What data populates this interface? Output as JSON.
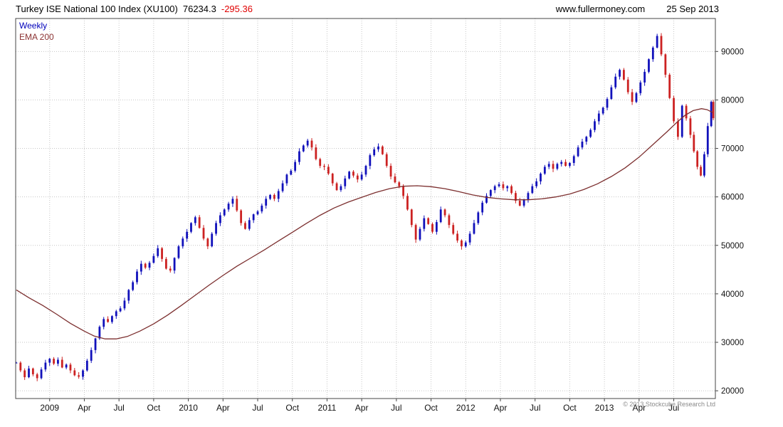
{
  "header": {
    "title": "Turkey ISE National 100 Index (XU100)",
    "last_price": "76234.3",
    "change": "-295.36",
    "site": "www.fullermoney.com",
    "date": "25 Sep 2013"
  },
  "legend": {
    "series": "Weekly",
    "ema": "EMA 200"
  },
  "footer": {
    "copyright": "© 2013 Stockcube Research Ltd"
  },
  "colors": {
    "up": "#1111bb",
    "down": "#cc2222",
    "ema": "#7c2f2f",
    "grid": "#c6c6c6",
    "border": "#444444",
    "axis_text": "#111111",
    "change_text": "#e00000",
    "legend_weekly": "#0000bb",
    "legend_ema": "#8b3232"
  },
  "chart_data": {
    "type": "candlestick",
    "title": "Turkey ISE National 100 Index (XU100)",
    "timeframe": "Weekly",
    "overlay": "EMA 200",
    "last_price": 76234.3,
    "change": -295.36,
    "x_domain": [
      2008.755,
      2013.8
    ],
    "y_domain": [
      18400,
      96800
    ],
    "y_ticks": [
      20000,
      30000,
      40000,
      50000,
      60000,
      70000,
      80000,
      90000
    ],
    "x_ticks": [
      {
        "t": 2009.0,
        "label": "2009"
      },
      {
        "t": 2009.25,
        "label": "Apr"
      },
      {
        "t": 2009.5,
        "label": "Jul"
      },
      {
        "t": 2009.75,
        "label": "Oct"
      },
      {
        "t": 2010.0,
        "label": "2010"
      },
      {
        "t": 2010.25,
        "label": "Apr"
      },
      {
        "t": 2010.5,
        "label": "Jul"
      },
      {
        "t": 2010.75,
        "label": "Oct"
      },
      {
        "t": 2011.0,
        "label": "2011"
      },
      {
        "t": 2011.25,
        "label": "Apr"
      },
      {
        "t": 2011.5,
        "label": "Jul"
      },
      {
        "t": 2011.75,
        "label": "Oct"
      },
      {
        "t": 2012.0,
        "label": "2012"
      },
      {
        "t": 2012.25,
        "label": "Apr"
      },
      {
        "t": 2012.5,
        "label": "Jul"
      },
      {
        "t": 2012.75,
        "label": "Oct"
      },
      {
        "t": 2013.0,
        "label": "2013"
      },
      {
        "t": 2013.25,
        "label": "Apr"
      },
      {
        "t": 2013.5,
        "label": "Jul"
      }
    ],
    "series": {
      "weekly_close": [
        [
          2008.76,
          25800
        ],
        [
          2008.79,
          24200
        ],
        [
          2008.82,
          22800
        ],
        [
          2008.85,
          24600
        ],
        [
          2008.88,
          23400
        ],
        [
          2008.91,
          22600
        ],
        [
          2008.94,
          24400
        ],
        [
          2008.97,
          25800
        ],
        [
          2009.0,
          26600
        ],
        [
          2009.03,
          25600
        ],
        [
          2009.06,
          26400
        ],
        [
          2009.09,
          24800
        ],
        [
          2009.12,
          25400
        ],
        [
          2009.15,
          24200
        ],
        [
          2009.18,
          23200
        ],
        [
          2009.21,
          22900
        ],
        [
          2009.24,
          24200
        ],
        [
          2009.27,
          26200
        ],
        [
          2009.3,
          28400
        ],
        [
          2009.33,
          30800
        ],
        [
          2009.36,
          33200
        ],
        [
          2009.39,
          34800
        ],
        [
          2009.42,
          34200
        ],
        [
          2009.45,
          35400
        ],
        [
          2009.48,
          36400
        ],
        [
          2009.51,
          37000
        ],
        [
          2009.54,
          38600
        ],
        [
          2009.57,
          40800
        ],
        [
          2009.6,
          42400
        ],
        [
          2009.63,
          44600
        ],
        [
          2009.66,
          46200
        ],
        [
          2009.69,
          45400
        ],
        [
          2009.72,
          46400
        ],
        [
          2009.75,
          47800
        ],
        [
          2009.78,
          49400
        ],
        [
          2009.81,
          47200
        ],
        [
          2009.84,
          45200
        ],
        [
          2009.87,
          44800
        ],
        [
          2009.9,
          47400
        ],
        [
          2009.93,
          49800
        ],
        [
          2009.96,
          51400
        ],
        [
          2009.99,
          52800
        ],
        [
          2010.02,
          54600
        ],
        [
          2010.05,
          55800
        ],
        [
          2010.08,
          53600
        ],
        [
          2010.11,
          51400
        ],
        [
          2010.14,
          49800
        ],
        [
          2010.17,
          52400
        ],
        [
          2010.2,
          54600
        ],
        [
          2010.23,
          56200
        ],
        [
          2010.26,
          57400
        ],
        [
          2010.29,
          58600
        ],
        [
          2010.32,
          59600
        ],
        [
          2010.35,
          57200
        ],
        [
          2010.38,
          54600
        ],
        [
          2010.41,
          53400
        ],
        [
          2010.44,
          55200
        ],
        [
          2010.47,
          56400
        ],
        [
          2010.5,
          57000
        ],
        [
          2010.53,
          58200
        ],
        [
          2010.56,
          59600
        ],
        [
          2010.59,
          60400
        ],
        [
          2010.62,
          59600
        ],
        [
          2010.65,
          61200
        ],
        [
          2010.68,
          62800
        ],
        [
          2010.71,
          64600
        ],
        [
          2010.74,
          65400
        ],
        [
          2010.77,
          67200
        ],
        [
          2010.8,
          69400
        ],
        [
          2010.83,
          70600
        ],
        [
          2010.86,
          71600
        ],
        [
          2010.89,
          70200
        ],
        [
          2010.92,
          67800
        ],
        [
          2010.95,
          66400
        ],
        [
          2010.98,
          66200
        ],
        [
          2011.01,
          64800
        ],
        [
          2011.04,
          62800
        ],
        [
          2011.07,
          61400
        ],
        [
          2011.1,
          62200
        ],
        [
          2011.13,
          63800
        ],
        [
          2011.16,
          65200
        ],
        [
          2011.19,
          64400
        ],
        [
          2011.22,
          63600
        ],
        [
          2011.25,
          64600
        ],
        [
          2011.28,
          66400
        ],
        [
          2011.31,
          68600
        ],
        [
          2011.34,
          69800
        ],
        [
          2011.37,
          70400
        ],
        [
          2011.4,
          68800
        ],
        [
          2011.43,
          66400
        ],
        [
          2011.46,
          64200
        ],
        [
          2011.49,
          63000
        ],
        [
          2011.52,
          62200
        ],
        [
          2011.55,
          60200
        ],
        [
          2011.58,
          57400
        ],
        [
          2011.61,
          54200
        ],
        [
          2011.64,
          51200
        ],
        [
          2011.67,
          53400
        ],
        [
          2011.7,
          55600
        ],
        [
          2011.73,
          54400
        ],
        [
          2011.76,
          52800
        ],
        [
          2011.79,
          54800
        ],
        [
          2011.82,
          57400
        ],
        [
          2011.85,
          56200
        ],
        [
          2011.88,
          54200
        ],
        [
          2011.91,
          52400
        ],
        [
          2011.94,
          51000
        ],
        [
          2011.97,
          49800
        ],
        [
          2012.0,
          50600
        ],
        [
          2012.03,
          52400
        ],
        [
          2012.06,
          54600
        ],
        [
          2012.09,
          56800
        ],
        [
          2012.12,
          58800
        ],
        [
          2012.15,
          60200
        ],
        [
          2012.18,
          61400
        ],
        [
          2012.21,
          62200
        ],
        [
          2012.24,
          62600
        ],
        [
          2012.27,
          61800
        ],
        [
          2012.3,
          62200
        ],
        [
          2012.33,
          60800
        ],
        [
          2012.36,
          59200
        ],
        [
          2012.39,
          58200
        ],
        [
          2012.42,
          59400
        ],
        [
          2012.45,
          60800
        ],
        [
          2012.48,
          62200
        ],
        [
          2012.51,
          63200
        ],
        [
          2012.54,
          64800
        ],
        [
          2012.57,
          66200
        ],
        [
          2012.6,
          66800
        ],
        [
          2012.63,
          65800
        ],
        [
          2012.66,
          66800
        ],
        [
          2012.69,
          67200
        ],
        [
          2012.72,
          66400
        ],
        [
          2012.75,
          67000
        ],
        [
          2012.78,
          68400
        ],
        [
          2012.81,
          70200
        ],
        [
          2012.84,
          71400
        ],
        [
          2012.87,
          72400
        ],
        [
          2012.9,
          73800
        ],
        [
          2012.93,
          75600
        ],
        [
          2012.96,
          77200
        ],
        [
          2012.99,
          78400
        ],
        [
          2013.02,
          80200
        ],
        [
          2013.05,
          82600
        ],
        [
          2013.08,
          84800
        ],
        [
          2013.11,
          86200
        ],
        [
          2013.14,
          84200
        ],
        [
          2013.17,
          81600
        ],
        [
          2013.2,
          79600
        ],
        [
          2013.23,
          81400
        ],
        [
          2013.26,
          83600
        ],
        [
          2013.29,
          85800
        ],
        [
          2013.32,
          88400
        ],
        [
          2013.35,
          90800
        ],
        [
          2013.38,
          93200
        ],
        [
          2013.41,
          89400
        ],
        [
          2013.44,
          85200
        ],
        [
          2013.47,
          80400
        ],
        [
          2013.5,
          75600
        ],
        [
          2013.53,
          72400
        ],
        [
          2013.56,
          78800
        ],
        [
          2013.59,
          76200
        ],
        [
          2013.62,
          72800
        ],
        [
          2013.645,
          69400
        ],
        [
          2013.67,
          66200
        ],
        [
          2013.695,
          64400
        ],
        [
          2013.72,
          68800
        ],
        [
          2013.745,
          74600
        ],
        [
          2013.77,
          79600
        ],
        [
          2013.785,
          76234
        ]
      ],
      "ema_200": [
        [
          2008.76,
          40800
        ],
        [
          2008.85,
          39200
        ],
        [
          2008.95,
          37600
        ],
        [
          2009.05,
          35800
        ],
        [
          2009.15,
          33900
        ],
        [
          2009.25,
          32300
        ],
        [
          2009.32,
          31300
        ],
        [
          2009.4,
          30700
        ],
        [
          2009.48,
          30700
        ],
        [
          2009.56,
          31200
        ],
        [
          2009.65,
          32300
        ],
        [
          2009.75,
          33800
        ],
        [
          2009.85,
          35600
        ],
        [
          2009.95,
          37600
        ],
        [
          2010.05,
          39700
        ],
        [
          2010.15,
          41800
        ],
        [
          2010.25,
          43800
        ],
        [
          2010.35,
          45700
        ],
        [
          2010.45,
          47400
        ],
        [
          2010.55,
          49100
        ],
        [
          2010.65,
          50900
        ],
        [
          2010.75,
          52700
        ],
        [
          2010.85,
          54500
        ],
        [
          2010.95,
          56200
        ],
        [
          2011.05,
          57700
        ],
        [
          2011.15,
          58900
        ],
        [
          2011.25,
          59900
        ],
        [
          2011.35,
          60900
        ],
        [
          2011.45,
          61700
        ],
        [
          2011.55,
          62200
        ],
        [
          2011.65,
          62300
        ],
        [
          2011.75,
          62100
        ],
        [
          2011.85,
          61700
        ],
        [
          2011.95,
          61100
        ],
        [
          2012.05,
          60400
        ],
        [
          2012.15,
          59900
        ],
        [
          2012.25,
          59600
        ],
        [
          2012.35,
          59400
        ],
        [
          2012.45,
          59400
        ],
        [
          2012.55,
          59600
        ],
        [
          2012.65,
          60000
        ],
        [
          2012.75,
          60600
        ],
        [
          2012.85,
          61500
        ],
        [
          2012.95,
          62700
        ],
        [
          2013.05,
          64200
        ],
        [
          2013.15,
          66000
        ],
        [
          2013.25,
          68200
        ],
        [
          2013.35,
          70800
        ],
        [
          2013.45,
          73400
        ],
        [
          2013.52,
          75300
        ],
        [
          2013.58,
          76800
        ],
        [
          2013.64,
          77800
        ],
        [
          2013.7,
          78200
        ],
        [
          2013.74,
          78000
        ],
        [
          2013.78,
          77400
        ]
      ]
    }
  }
}
